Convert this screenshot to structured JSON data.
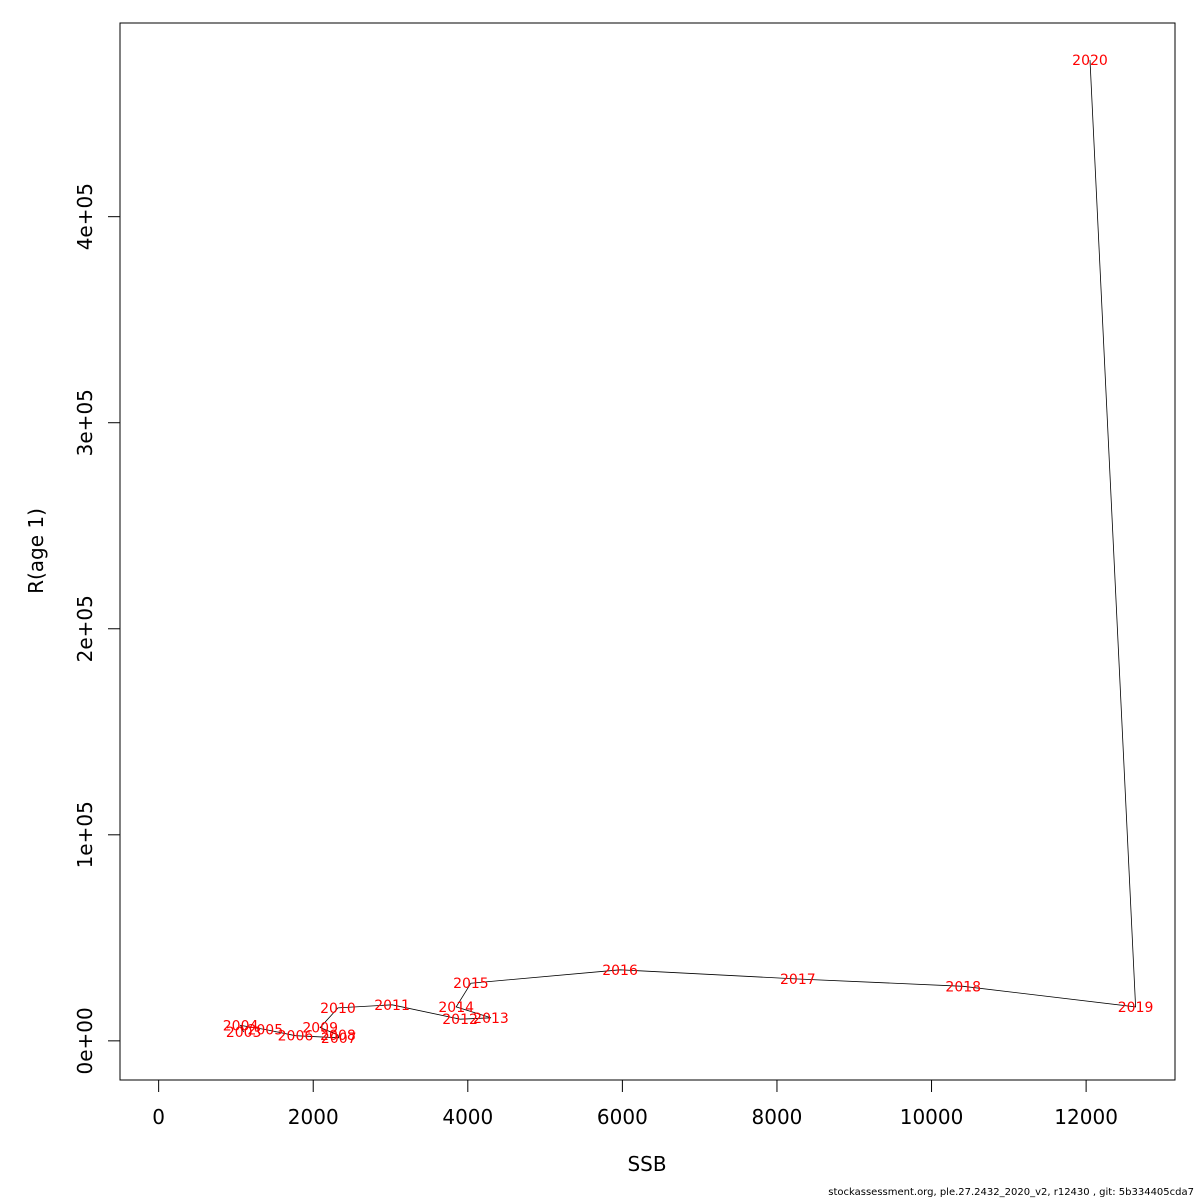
{
  "chart_data": {
    "type": "line",
    "title": "",
    "xlabel": "SSB",
    "ylabel": "R(age 1)",
    "xlim": [
      -500,
      13150
    ],
    "ylim": [
      -19000,
      494000
    ],
    "x_ticks": [
      {
        "value": 0,
        "label": "0"
      },
      {
        "value": 2000,
        "label": "2000"
      },
      {
        "value": 4000,
        "label": "4000"
      },
      {
        "value": 6000,
        "label": "6000"
      },
      {
        "value": 8000,
        "label": "8000"
      },
      {
        "value": 10000,
        "label": "10000"
      },
      {
        "value": 12000,
        "label": "12000"
      }
    ],
    "y_ticks": [
      {
        "value": 0,
        "label": "0e+00"
      },
      {
        "value": 100000,
        "label": "1e+05"
      },
      {
        "value": 200000,
        "label": "2e+05"
      },
      {
        "value": 300000,
        "label": "3e+05"
      },
      {
        "value": 400000,
        "label": "4e+05"
      }
    ],
    "line_color": "#000000",
    "label_color": "#ff0000",
    "points": [
      {
        "label": "2004",
        "ssb": 1060,
        "r": 7500
      },
      {
        "label": "2005",
        "ssb": 1380,
        "r": 5500
      },
      {
        "label": "2003",
        "ssb": 1100,
        "r": 4300
      },
      {
        "label": "2006",
        "ssb": 1770,
        "r": 2500
      },
      {
        "label": "2007",
        "ssb": 2330,
        "r": 1500
      },
      {
        "label": "2008",
        "ssb": 2320,
        "r": 2800
      },
      {
        "label": "2009",
        "ssb": 2090,
        "r": 6500
      },
      {
        "label": "2010",
        "ssb": 2320,
        "r": 16000
      },
      {
        "label": "2011",
        "ssb": 3020,
        "r": 17500
      },
      {
        "label": "2012",
        "ssb": 3900,
        "r": 10500
      },
      {
        "label": "2013",
        "ssb": 4300,
        "r": 11200
      },
      {
        "label": "2014",
        "ssb": 3850,
        "r": 16500
      },
      {
        "label": "2015",
        "ssb": 4040,
        "r": 28000
      },
      {
        "label": "2016",
        "ssb": 5970,
        "r": 34500
      },
      {
        "label": "2017",
        "ssb": 8270,
        "r": 30000
      },
      {
        "label": "2018",
        "ssb": 10410,
        "r": 26500
      },
      {
        "label": "2019",
        "ssb": 12640,
        "r": 16500
      },
      {
        "label": "2020",
        "ssb": 12050,
        "r": 476000
      }
    ]
  },
  "footer": "stockassessment.org, ple.27.2432_2020_v2, r12430 , git: 5b334405cda7"
}
